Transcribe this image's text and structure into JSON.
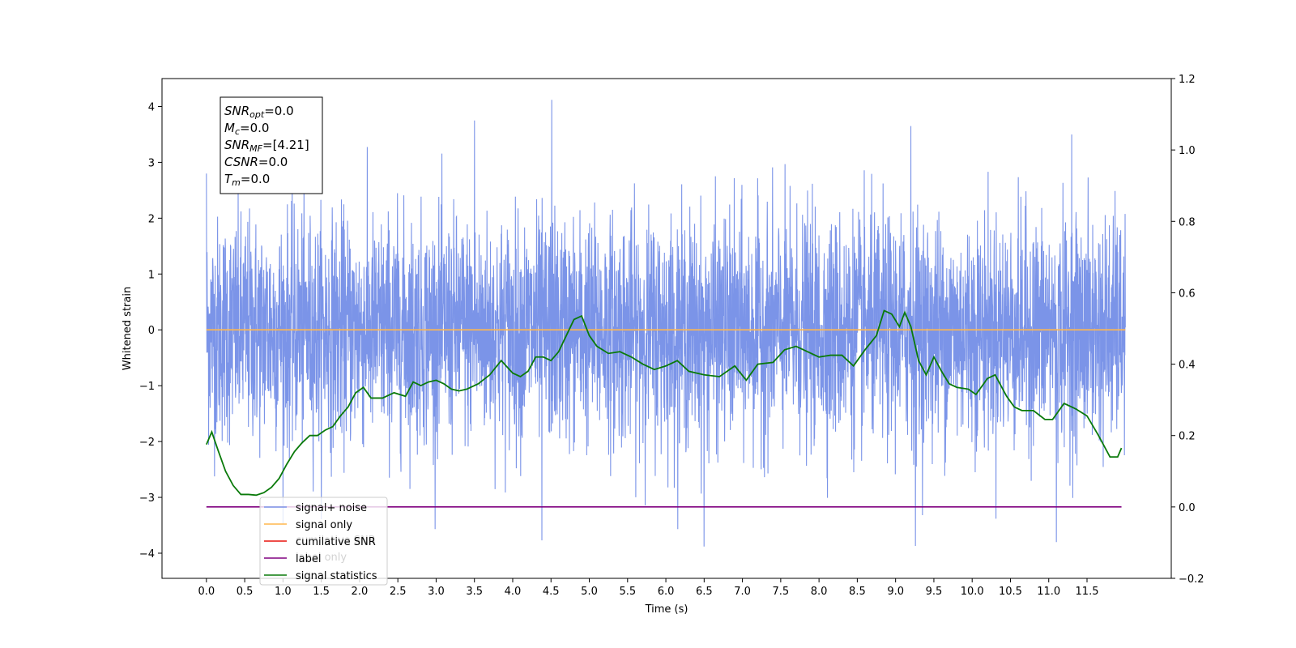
{
  "chart_data": {
    "type": "line",
    "title": "",
    "xlabel": "Time (s)",
    "ylabel": "Whitened strain",
    "xlim": [
      -0.58,
      12.6
    ],
    "ylim": [
      -4.45,
      4.5
    ],
    "y2lim": [
      -0.2,
      1.2
    ],
    "x_ticks": [
      0.0,
      0.5,
      1.0,
      1.5,
      2.0,
      2.5,
      3.0,
      3.5,
      4.0,
      4.5,
      5.0,
      5.5,
      6.0,
      6.5,
      7.0,
      7.5,
      8.0,
      8.5,
      9.0,
      9.5,
      10.0,
      10.5,
      11.0,
      11.5
    ],
    "x_tick_labels": [
      "0.0",
      "0.5",
      "1.0",
      "1.5",
      "2.0",
      "2.5",
      "3.0",
      "3.5",
      "4.0",
      "4.5",
      "5.0",
      "5.5",
      "6.0",
      "6.5",
      "7.0",
      "7.5",
      "8.0",
      "8.5",
      "9.0",
      "9.5",
      "10.0",
      "10.5",
      "11.0",
      "11.5"
    ],
    "y_ticks": [
      -4,
      -3,
      -2,
      -1,
      0,
      1,
      2,
      3,
      4
    ],
    "y_tick_labels": [
      "−4",
      "−3",
      "−2",
      "−1",
      "0",
      "1",
      "2",
      "3",
      "4"
    ],
    "y2_ticks": [
      -0.2,
      0.0,
      0.2,
      0.4,
      0.6,
      0.8,
      1.0,
      1.2
    ],
    "y2_tick_labels": [
      "−0.2",
      "0.0",
      "0.2",
      "0.4",
      "0.6",
      "0.8",
      "1.0",
      "1.2"
    ],
    "grid": false,
    "legend_position": "bottom-left",
    "series": [
      {
        "name": "signal+ noise",
        "axis": "left",
        "color": "#7b94e8",
        "kind": "noise",
        "x_range": [
          0.0,
          12.0
        ],
        "sigma": 1.0,
        "peak_max": 4.12,
        "peak_min": -3.88,
        "notable_peaks": [
          {
            "x": 4.51,
            "y": 4.12
          },
          {
            "x": 3.5,
            "y": 3.75
          },
          {
            "x": 9.2,
            "y": 3.65
          },
          {
            "x": 11.3,
            "y": 3.5
          },
          {
            "x": 0.0,
            "y": 2.8
          },
          {
            "x": 6.5,
            "y": -3.88
          },
          {
            "x": 9.26,
            "y": -3.87
          },
          {
            "x": 11.1,
            "y": -3.8
          },
          {
            "x": 4.38,
            "y": -3.77
          }
        ]
      },
      {
        "name": "signal only",
        "axis": "left",
        "color": "#ffb74d",
        "x": [
          0.0,
          12.0
        ],
        "y": [
          0.0,
          0.0
        ]
      },
      {
        "name": "cumilative SNR",
        "axis": "right",
        "color": "#e8140e",
        "x": [],
        "y": []
      },
      {
        "name": "label",
        "axis": "right",
        "color": "#800080",
        "x": [
          0.0,
          11.95
        ],
        "y": [
          0.0,
          0.0
        ]
      },
      {
        "name": "signal statistics",
        "axis": "right",
        "color": "#0a7a0a",
        "x": [
          0.0,
          0.07,
          0.15,
          0.25,
          0.35,
          0.45,
          0.55,
          0.65,
          0.75,
          0.85,
          0.95,
          1.05,
          1.15,
          1.25,
          1.35,
          1.45,
          1.55,
          1.65,
          1.75,
          1.85,
          1.95,
          2.05,
          2.15,
          2.3,
          2.45,
          2.6,
          2.7,
          2.8,
          2.9,
          3.0,
          3.1,
          3.2,
          3.3,
          3.4,
          3.55,
          3.7,
          3.85,
          4.0,
          4.1,
          4.2,
          4.3,
          4.4,
          4.5,
          4.6,
          4.7,
          4.8,
          4.9,
          5.0,
          5.1,
          5.25,
          5.4,
          5.55,
          5.7,
          5.85,
          6.0,
          6.15,
          6.3,
          6.5,
          6.7,
          6.9,
          7.05,
          7.2,
          7.4,
          7.55,
          7.7,
          7.85,
          8.0,
          8.15,
          8.3,
          8.45,
          8.6,
          8.75,
          8.85,
          8.95,
          9.05,
          9.12,
          9.2,
          9.3,
          9.4,
          9.5,
          9.6,
          9.7,
          9.8,
          9.95,
          10.05,
          10.2,
          10.3,
          10.45,
          10.55,
          10.65,
          10.8,
          10.95,
          11.05,
          11.2,
          11.35,
          11.5,
          11.65,
          11.8,
          11.9,
          11.95
        ],
        "y": [
          0.175,
          0.21,
          0.16,
          0.1,
          0.06,
          0.035,
          0.035,
          0.033,
          0.04,
          0.055,
          0.08,
          0.12,
          0.155,
          0.18,
          0.2,
          0.2,
          0.215,
          0.225,
          0.255,
          0.28,
          0.32,
          0.335,
          0.305,
          0.305,
          0.32,
          0.31,
          0.35,
          0.34,
          0.35,
          0.355,
          0.345,
          0.33,
          0.325,
          0.33,
          0.345,
          0.37,
          0.41,
          0.375,
          0.365,
          0.38,
          0.42,
          0.42,
          0.41,
          0.435,
          0.48,
          0.525,
          0.535,
          0.48,
          0.45,
          0.43,
          0.435,
          0.42,
          0.4,
          0.385,
          0.395,
          0.41,
          0.38,
          0.37,
          0.365,
          0.395,
          0.355,
          0.4,
          0.405,
          0.44,
          0.45,
          0.435,
          0.42,
          0.425,
          0.425,
          0.395,
          0.44,
          0.48,
          0.55,
          0.54,
          0.505,
          0.545,
          0.505,
          0.41,
          0.37,
          0.42,
          0.38,
          0.345,
          0.335,
          0.33,
          0.315,
          0.36,
          0.37,
          0.31,
          0.28,
          0.27,
          0.27,
          0.245,
          0.245,
          0.29,
          0.275,
          0.255,
          0.2,
          0.14,
          0.14,
          0.165
        ]
      }
    ],
    "legend": [
      "signal+ noise",
      "signal only",
      "cumilative SNR",
      "label",
      "signal statistics"
    ],
    "annotation_lines": [
      {
        "sym": "SNR",
        "sub": "opt",
        "val": "=0.0"
      },
      {
        "sym": "M",
        "sub": "c",
        "val": "=0.0"
      },
      {
        "sym": "SNR",
        "sub": "MF",
        "val": "=[4.21]"
      },
      {
        "sym": "CSNR",
        "sub": "",
        "val": "=0.0"
      },
      {
        "sym": "T",
        "sub": "m",
        "val": "=0.0"
      }
    ],
    "legend_overlap_texts": [
      "cumilative SNR",
      "label only"
    ]
  }
}
